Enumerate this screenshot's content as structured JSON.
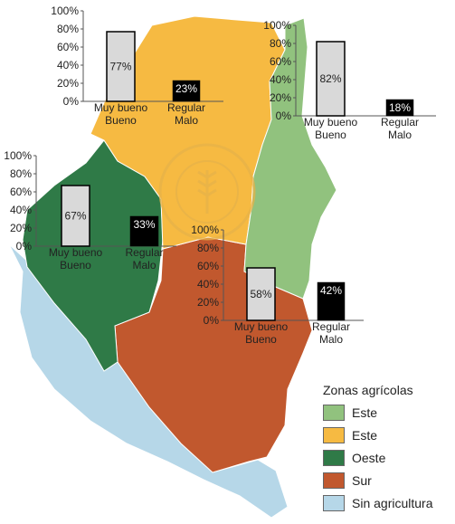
{
  "colors": {
    "este_light": "#91c27e",
    "este_yellow": "#f6ba42",
    "oeste": "#2f7a47",
    "sur": "#c1582e",
    "sin_agricultura": "#b6d7e8",
    "bar_good_fill": "#d9d9d9",
    "bar_bad_fill": "#000000"
  },
  "seal_text": "BOLSA DE CEREALES DE ENTRE RÍOS",
  "legend": {
    "title": "Zonas agrícolas",
    "items": [
      {
        "label": "Este",
        "color": "#91c27e"
      },
      {
        "label": "Este",
        "color": "#f6ba42"
      },
      {
        "label": "Oeste",
        "color": "#2f7a47"
      },
      {
        "label": "Sur",
        "color": "#c1582e"
      },
      {
        "label": "Sin agricultura",
        "color": "#b6d7e8"
      }
    ]
  },
  "chart_data": [
    {
      "type": "bar",
      "categories": [
        "Muy bueno\nBueno",
        "Regular\nMalo"
      ],
      "values": [
        77,
        23
      ],
      "value_labels": [
        "77%",
        "23%"
      ],
      "yticks": [
        "0%",
        "20%",
        "40%",
        "60%",
        "80%",
        "100%"
      ],
      "ylim": [
        0,
        100
      ]
    },
    {
      "type": "bar",
      "categories": [
        "Muy bueno\nBueno",
        "Regular\nMalo"
      ],
      "values": [
        82,
        18
      ],
      "value_labels": [
        "82%",
        "18%"
      ],
      "yticks": [
        "0%",
        "20%",
        "40%",
        "60%",
        "80%",
        "100%"
      ],
      "ylim": [
        0,
        100
      ]
    },
    {
      "type": "bar",
      "categories": [
        "Muy bueno\nBueno",
        "Regular\nMalo"
      ],
      "values": [
        67,
        33
      ],
      "value_labels": [
        "67%",
        "33%"
      ],
      "yticks": [
        "0%",
        "20%",
        "40%",
        "60%",
        "80%",
        "100%"
      ],
      "ylim": [
        0,
        100
      ]
    },
    {
      "type": "bar",
      "categories": [
        "Muy bueno\nBueno",
        "Regular\nMalo"
      ],
      "values": [
        58,
        42
      ],
      "value_labels": [
        "58%",
        "42%"
      ],
      "yticks": [
        "0%",
        "20%",
        "40%",
        "60%",
        "80%",
        "100%"
      ],
      "ylim": [
        0,
        100
      ]
    }
  ]
}
